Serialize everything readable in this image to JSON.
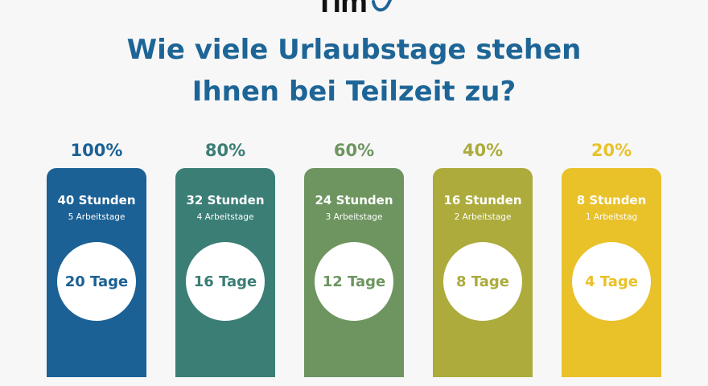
{
  "header": {
    "logo_text": "Tim",
    "logo_mark": "checkmark-swoosh-icon",
    "title_line1": "Wie viele Urlaubstage stehen",
    "title_line2": "Ihnen bei Teilzeit zu?"
  },
  "columns": [
    {
      "percent": "100%",
      "hours": "40 Stunden",
      "workdays": "5 Arbeitstage",
      "vacation": "20 Tage",
      "color": "#1b6195"
    },
    {
      "percent": "80%",
      "hours": "32 Stunden",
      "workdays": "4 Arbeitstage",
      "vacation": "16 Tage",
      "color": "#3b7e76"
    },
    {
      "percent": "60%",
      "hours": "24 Stunden",
      "workdays": "3 Arbeitstage",
      "vacation": "12 Tage",
      "color": "#6e9560"
    },
    {
      "percent": "40%",
      "hours": "16 Stunden",
      "workdays": "2 Arbeitstage",
      "vacation": "8 Tage",
      "color": "#acab3c"
    },
    {
      "percent": "20%",
      "hours": "8 Stunden",
      "workdays": "1 Arbeitstag",
      "vacation": "4 Tage",
      "color": "#e9c128"
    }
  ]
}
